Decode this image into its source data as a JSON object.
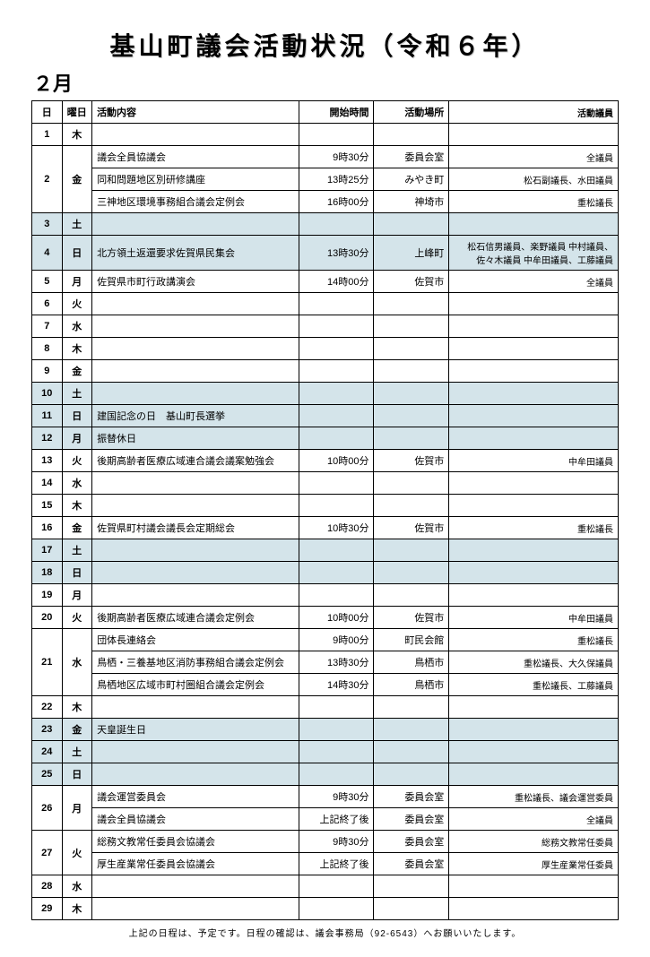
{
  "title": "基山町議会活動状況（令和６年）",
  "month": "２月",
  "headers": {
    "day": "日",
    "dow": "曜日",
    "activity": "活動内容",
    "time": "開始時間",
    "place": "活動場所",
    "members": "活動議員"
  },
  "rows": [
    {
      "day": "1",
      "dow": "木",
      "activity": "",
      "time": "",
      "place": "",
      "members": "",
      "shaded": false,
      "rowspan_day": 1,
      "rowspan_dow": 1
    },
    {
      "day": "2",
      "dow": "金",
      "activity": "議会全員協議会",
      "time": "9時30分",
      "place": "委員会室",
      "members": "全議員",
      "shaded": false,
      "rowspan_day": 3,
      "rowspan_dow": 3
    },
    {
      "activity": "同和問題地区別研修講座",
      "time": "13時25分",
      "place": "みやき町",
      "members": "松石副議長、水田議員",
      "shaded": false
    },
    {
      "activity": "三神地区環境事務組合議会定例会",
      "time": "16時00分",
      "place": "神埼市",
      "members": "重松議長",
      "shaded": false
    },
    {
      "day": "3",
      "dow": "土",
      "activity": "",
      "time": "",
      "place": "",
      "members": "",
      "shaded": true,
      "rowspan_day": 1,
      "rowspan_dow": 1
    },
    {
      "day": "4",
      "dow": "日",
      "activity": "北方領土返還要求佐賀県民集会",
      "time": "13時30分",
      "place": "上峰町",
      "members": "松石信男議員、楽野議員 中村議員、佐々木議員 中牟田議員、工藤議員",
      "shaded": true,
      "rowspan_day": 1,
      "rowspan_dow": 1
    },
    {
      "day": "5",
      "dow": "月",
      "activity": "佐賀県市町行政講演会",
      "time": "14時00分",
      "place": "佐賀市",
      "members": "全議員",
      "shaded": false,
      "rowspan_day": 1,
      "rowspan_dow": 1
    },
    {
      "day": "6",
      "dow": "火",
      "activity": "",
      "time": "",
      "place": "",
      "members": "",
      "shaded": false,
      "rowspan_day": 1,
      "rowspan_dow": 1
    },
    {
      "day": "7",
      "dow": "水",
      "activity": "",
      "time": "",
      "place": "",
      "members": "",
      "shaded": false,
      "rowspan_day": 1,
      "rowspan_dow": 1
    },
    {
      "day": "8",
      "dow": "木",
      "activity": "",
      "time": "",
      "place": "",
      "members": "",
      "shaded": false,
      "rowspan_day": 1,
      "rowspan_dow": 1
    },
    {
      "day": "9",
      "dow": "金",
      "activity": "",
      "time": "",
      "place": "",
      "members": "",
      "shaded": false,
      "rowspan_day": 1,
      "rowspan_dow": 1
    },
    {
      "day": "10",
      "dow": "土",
      "activity": "",
      "time": "",
      "place": "",
      "members": "",
      "shaded": true,
      "rowspan_day": 1,
      "rowspan_dow": 1
    },
    {
      "day": "11",
      "dow": "日",
      "activity": "建国記念の日　基山町長選挙",
      "time": "",
      "place": "",
      "members": "",
      "shaded": true,
      "rowspan_day": 1,
      "rowspan_dow": 1
    },
    {
      "day": "12",
      "dow": "月",
      "activity": "振替休日",
      "time": "",
      "place": "",
      "members": "",
      "shaded": true,
      "rowspan_day": 1,
      "rowspan_dow": 1
    },
    {
      "day": "13",
      "dow": "火",
      "activity": "後期高齢者医療広域連合議会議案勉強会",
      "time": "10時00分",
      "place": "佐賀市",
      "members": "中牟田議員",
      "shaded": false,
      "rowspan_day": 1,
      "rowspan_dow": 1
    },
    {
      "day": "14",
      "dow": "水",
      "activity": "",
      "time": "",
      "place": "",
      "members": "",
      "shaded": false,
      "rowspan_day": 1,
      "rowspan_dow": 1
    },
    {
      "day": "15",
      "dow": "木",
      "activity": "",
      "time": "",
      "place": "",
      "members": "",
      "shaded": false,
      "rowspan_day": 1,
      "rowspan_dow": 1
    },
    {
      "day": "16",
      "dow": "金",
      "activity": "佐賀県町村議会議長会定期総会",
      "time": "10時30分",
      "place": "佐賀市",
      "members": "重松議長",
      "shaded": false,
      "rowspan_day": 1,
      "rowspan_dow": 1
    },
    {
      "day": "17",
      "dow": "土",
      "activity": "",
      "time": "",
      "place": "",
      "members": "",
      "shaded": true,
      "rowspan_day": 1,
      "rowspan_dow": 1
    },
    {
      "day": "18",
      "dow": "日",
      "activity": "",
      "time": "",
      "place": "",
      "members": "",
      "shaded": true,
      "rowspan_day": 1,
      "rowspan_dow": 1
    },
    {
      "day": "19",
      "dow": "月",
      "activity": "",
      "time": "",
      "place": "",
      "members": "",
      "shaded": false,
      "rowspan_day": 1,
      "rowspan_dow": 1
    },
    {
      "day": "20",
      "dow": "火",
      "activity": "後期高齢者医療広域連合議会定例会",
      "time": "10時00分",
      "place": "佐賀市",
      "members": "中牟田議員",
      "shaded": false,
      "rowspan_day": 1,
      "rowspan_dow": 1
    },
    {
      "day": "21",
      "dow": "水",
      "activity": "団体長連絡会",
      "time": "9時00分",
      "place": "町民会館",
      "members": "重松議長",
      "shaded": false,
      "rowspan_day": 3,
      "rowspan_dow": 3
    },
    {
      "activity": "鳥栖・三養基地区消防事務組合議会定例会",
      "time": "13時30分",
      "place": "鳥栖市",
      "members": "重松議長、大久保議員",
      "shaded": false
    },
    {
      "activity": "鳥栖地区広域市町村圏組合議会定例会",
      "time": "14時30分",
      "place": "鳥栖市",
      "members": "重松議長、工藤議員",
      "shaded": false
    },
    {
      "day": "22",
      "dow": "木",
      "activity": "",
      "time": "",
      "place": "",
      "members": "",
      "shaded": false,
      "rowspan_day": 1,
      "rowspan_dow": 1
    },
    {
      "day": "23",
      "dow": "金",
      "activity": "天皇誕生日",
      "time": "",
      "place": "",
      "members": "",
      "shaded": true,
      "rowspan_day": 1,
      "rowspan_dow": 1
    },
    {
      "day": "24",
      "dow": "土",
      "activity": "",
      "time": "",
      "place": "",
      "members": "",
      "shaded": true,
      "rowspan_day": 1,
      "rowspan_dow": 1
    },
    {
      "day": "25",
      "dow": "日",
      "activity": "",
      "time": "",
      "place": "",
      "members": "",
      "shaded": true,
      "rowspan_day": 1,
      "rowspan_dow": 1
    },
    {
      "day": "26",
      "dow": "月",
      "activity": "議会運営委員会",
      "time": "9時30分",
      "place": "委員会室",
      "members": "重松議長、議会運営委員",
      "shaded": false,
      "rowspan_day": 2,
      "rowspan_dow": 2
    },
    {
      "activity": "議会全員協議会",
      "time": "上記終了後",
      "place": "委員会室",
      "members": "全議員",
      "shaded": false
    },
    {
      "day": "27",
      "dow": "火",
      "activity": "総務文教常任委員会協議会",
      "time": "9時30分",
      "place": "委員会室",
      "members": "総務文教常任委員",
      "shaded": false,
      "rowspan_day": 2,
      "rowspan_dow": 2
    },
    {
      "activity": "厚生産業常任委員会協議会",
      "time": "上記終了後",
      "place": "委員会室",
      "members": "厚生産業常任委員",
      "shaded": false
    },
    {
      "day": "28",
      "dow": "水",
      "activity": "",
      "time": "",
      "place": "",
      "members": "",
      "shaded": false,
      "rowspan_day": 1,
      "rowspan_dow": 1
    },
    {
      "day": "29",
      "dow": "木",
      "activity": "",
      "time": "",
      "place": "",
      "members": "",
      "shaded": false,
      "rowspan_day": 1,
      "rowspan_dow": 1
    }
  ],
  "footer": "上記の日程は、予定です。日程の確認は、議会事務局（92-6543）へお願いいたします。"
}
